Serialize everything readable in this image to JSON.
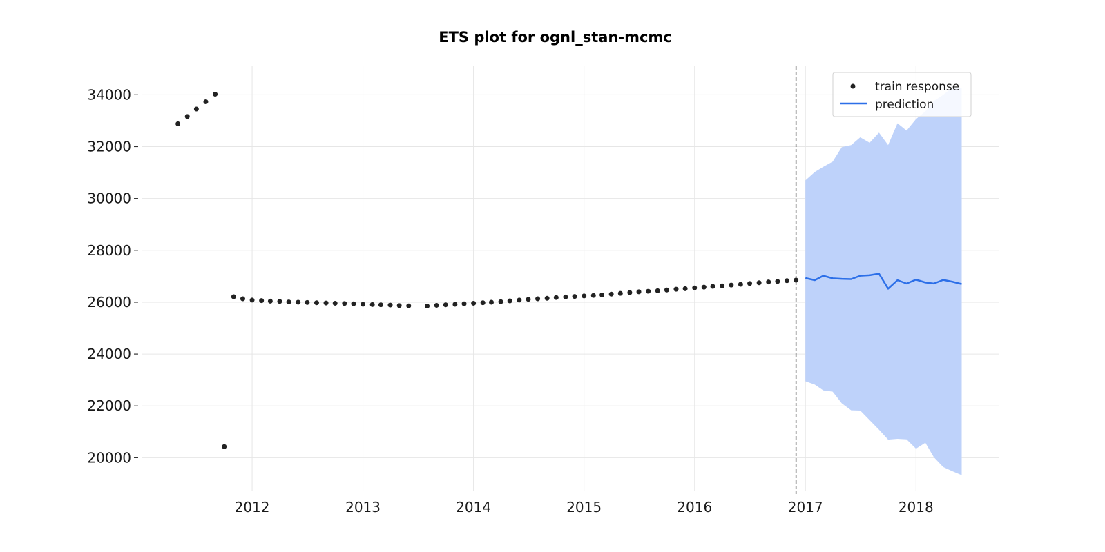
{
  "chart_data": {
    "type": "line",
    "title": "ETS plot for ognl_stan-mcmc",
    "xlabel": "",
    "ylabel": "",
    "x_axis": {
      "type": "date",
      "range": [
        "2011-01-01",
        "2018-10-01"
      ],
      "tick_labels": [
        "2012",
        "2013",
        "2014",
        "2015",
        "2016",
        "2017",
        "2018"
      ]
    },
    "y_axis": {
      "range": [
        18600,
        35100
      ],
      "tick_labels": [
        "20000",
        "22000",
        "24000",
        "26000",
        "28000",
        "30000",
        "32000",
        "34000"
      ]
    },
    "grid": true,
    "legend_position": "top-right",
    "colors": {
      "train": "#222222",
      "prediction": "#2c6fe8",
      "band": "#bed2fa",
      "cutoff": "#555555"
    },
    "train_cutoff": "2016-12-01",
    "series": [
      {
        "name": "train response",
        "kind": "scatter",
        "x": [
          "2011-05",
          "2011-06",
          "2011-07",
          "2011-08",
          "2011-09",
          "2011-10",
          "2011-11",
          "2011-12",
          "2012-01",
          "2012-02",
          "2012-03",
          "2012-04",
          "2012-05",
          "2012-06",
          "2012-07",
          "2012-08",
          "2012-09",
          "2012-10",
          "2012-11",
          "2012-12",
          "2013-01",
          "2013-02",
          "2013-03",
          "2013-04",
          "2013-05",
          "2013-06",
          "2013-08",
          "2013-09",
          "2013-10",
          "2013-11",
          "2013-12",
          "2014-01",
          "2014-02",
          "2014-03",
          "2014-04",
          "2014-05",
          "2014-06",
          "2014-07",
          "2014-08",
          "2014-09",
          "2014-10",
          "2014-11",
          "2014-12",
          "2015-01",
          "2015-02",
          "2015-03",
          "2015-04",
          "2015-05",
          "2015-06",
          "2015-07",
          "2015-08",
          "2015-09",
          "2015-10",
          "2015-11",
          "2015-12",
          "2016-01",
          "2016-02",
          "2016-03",
          "2016-04",
          "2016-05",
          "2016-06",
          "2016-07",
          "2016-08",
          "2016-09",
          "2016-10",
          "2016-11",
          "2016-12"
        ],
        "y": [
          32880,
          33160,
          33450,
          33730,
          34020,
          20430,
          26210,
          26130,
          26080,
          26060,
          26040,
          26030,
          26010,
          26000,
          25990,
          25980,
          25970,
          25960,
          25950,
          25940,
          25920,
          25910,
          25900,
          25890,
          25870,
          25860,
          25850,
          25880,
          25900,
          25920,
          25940,
          25960,
          25980,
          26000,
          26020,
          26050,
          26080,
          26110,
          26130,
          26150,
          26180,
          26200,
          26220,
          26240,
          26260,
          26280,
          26310,
          26340,
          26370,
          26400,
          26420,
          26440,
          26470,
          26500,
          26520,
          26550,
          26580,
          26610,
          26630,
          26660,
          26690,
          26720,
          26750,
          26780,
          26800,
          26830,
          26850
        ]
      },
      {
        "name": "prediction",
        "kind": "line",
        "x": [
          "2017-01",
          "2017-02",
          "2017-03",
          "2017-04",
          "2017-05",
          "2017-06",
          "2017-07",
          "2017-08",
          "2017-09",
          "2017-10",
          "2017-11",
          "2017-12",
          "2018-01",
          "2018-02",
          "2018-03",
          "2018-04",
          "2018-05",
          "2018-06"
        ],
        "y": [
          26930,
          26850,
          27020,
          26920,
          26900,
          26890,
          27020,
          27040,
          27100,
          26520,
          26850,
          26720,
          26870,
          26760,
          26720,
          26860,
          26790,
          26700
        ],
        "lower": [
          22950,
          22820,
          22600,
          22550,
          22100,
          21830,
          21820,
          21450,
          21080,
          20700,
          20730,
          20710,
          20350,
          20580,
          20020,
          19640,
          19480,
          19330
        ],
        "upper": [
          30700,
          31020,
          31220,
          31420,
          31980,
          32060,
          32360,
          32150,
          32540,
          32060,
          32900,
          32620,
          33060,
          33360,
          33760,
          34000,
          34280,
          34250
        ]
      }
    ]
  }
}
